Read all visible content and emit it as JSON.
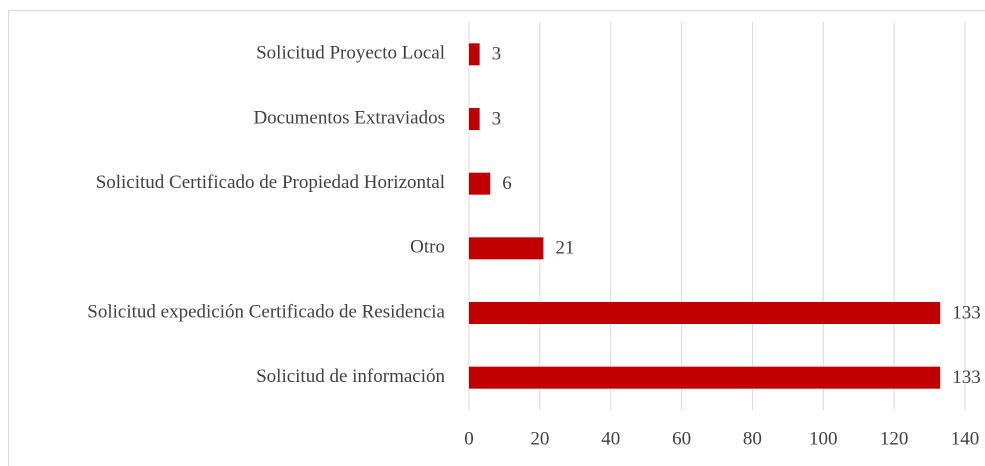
{
  "chart_data": {
    "type": "bar",
    "orientation": "horizontal",
    "categories": [
      "Solicitud Proyecto Local",
      "Documentos Extraviados",
      "Solicitud Certificado de Propiedad Horizontal",
      "Otro",
      "Solicitud expedición Certificado de Residencia",
      "Solicitud de información"
    ],
    "values": [
      3,
      3,
      6,
      21,
      133,
      133
    ],
    "color": "#c00000",
    "xlim": [
      0,
      140
    ],
    "xticks": [
      0,
      20,
      40,
      60,
      80,
      100,
      120,
      140
    ],
    "grid": true
  }
}
